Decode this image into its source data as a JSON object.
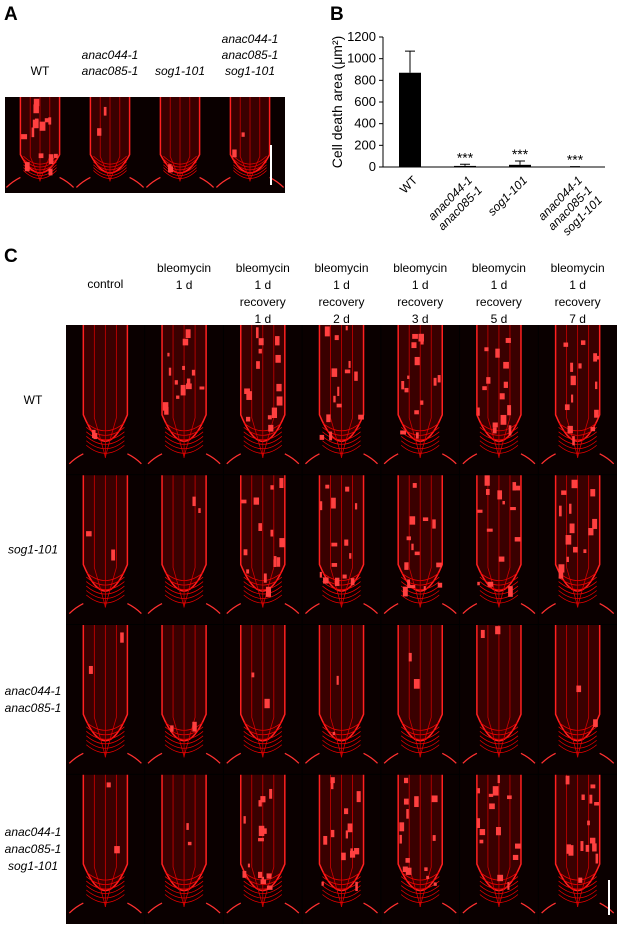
{
  "panel_labels": [
    "A",
    "B",
    "C"
  ],
  "panel_a": {
    "labels": [
      [
        "WT"
      ],
      [
        "anac044-1",
        "anac085-1"
      ],
      [
        "sog1-101"
      ],
      [
        "anac044-1",
        "anac085-1",
        "sog1-101"
      ]
    ]
  },
  "chart_data": {
    "type": "bar",
    "y_label": "Cell death area (μm²)",
    "categories": [
      [
        "WT"
      ],
      [
        "anac044-1",
        "anac085-1"
      ],
      [
        "sog1-101"
      ],
      [
        "anac044-1",
        "anac085-1",
        "sog1-101"
      ]
    ],
    "values": [
      870,
      10,
      20,
      0
    ],
    "errors": [
      200,
      15,
      35,
      3
    ],
    "annotations": [
      null,
      "***",
      "***",
      "***"
    ],
    "color": "#000000",
    "ylim": [
      0,
      1200
    ],
    "yticks": [
      0,
      200,
      400,
      600,
      800,
      1000,
      1200
    ]
  },
  "panel_c": {
    "columns": [
      [
        "control"
      ],
      [
        "bleomycin",
        "1 d"
      ],
      [
        "bleomycin",
        "1 d",
        "recovery",
        "1 d"
      ],
      [
        "bleomycin",
        "1 d",
        "recovery",
        "2 d"
      ],
      [
        "bleomycin",
        "1 d",
        "recovery",
        "3 d"
      ],
      [
        "bleomycin",
        "1 d",
        "recovery",
        "5 d"
      ],
      [
        "bleomycin",
        "1 d",
        "recovery",
        "7 d"
      ]
    ],
    "rows": [
      [
        "WT"
      ],
      [
        "sog1-101"
      ],
      [
        "anac044-1",
        "anac085-1"
      ],
      [
        "anac044-1",
        "anac085-1",
        "sog1-101"
      ]
    ]
  }
}
